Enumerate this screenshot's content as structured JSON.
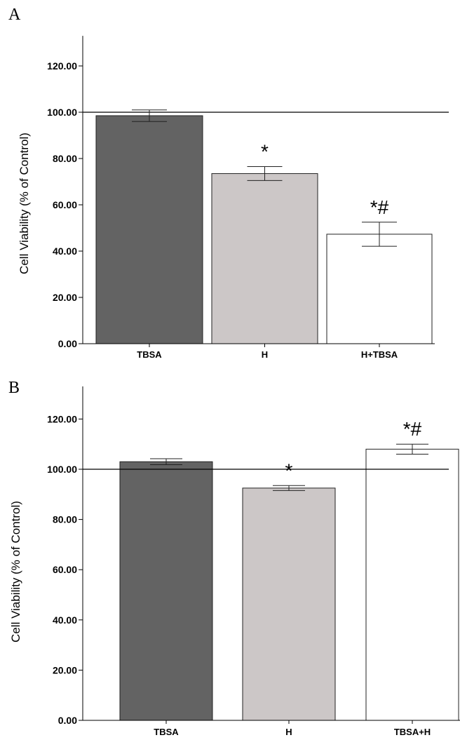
{
  "chart_data": [
    {
      "type": "bar",
      "panel_label": "A",
      "categories": [
        "TBSA",
        "H",
        "H+TBSA"
      ],
      "values": [
        98.5,
        73.5,
        47.3
      ],
      "errors": [
        2.5,
        3.0,
        5.2
      ],
      "colors": [
        "#636363",
        "#ccc7c7",
        "#ffffff"
      ],
      "annotations": [
        "",
        "*",
        "*#"
      ],
      "ylabel": "Cell Viability (% of Control)",
      "ylim": [
        0,
        133
      ],
      "yticks": [
        0,
        20,
        40,
        60,
        80,
        100,
        120
      ],
      "ytick_labels": [
        "0.00",
        "20.00",
        "40.00",
        "60.00",
        "80.00",
        "100.00",
        "120.00"
      ],
      "reference_line": 100,
      "grid": false
    },
    {
      "type": "bar",
      "panel_label": "B",
      "categories": [
        "TBSA",
        "H",
        "TBSA+H"
      ],
      "values": [
        103,
        92.5,
        108
      ],
      "errors": [
        1.2,
        1.0,
        2.0
      ],
      "colors": [
        "#636363",
        "#ccc7c7",
        "#ffffff"
      ],
      "annotations": [
        "",
        "*",
        "*#"
      ],
      "ylabel": "Cell Viability (% of Control)",
      "ylim": [
        0,
        133
      ],
      "yticks": [
        0,
        20,
        40,
        60,
        80,
        100,
        120
      ],
      "ytick_labels": [
        "0.00",
        "20.00",
        "40.00",
        "60.00",
        "80.00",
        "100.00",
        "120.00"
      ],
      "reference_line": 100,
      "grid": false
    }
  ]
}
